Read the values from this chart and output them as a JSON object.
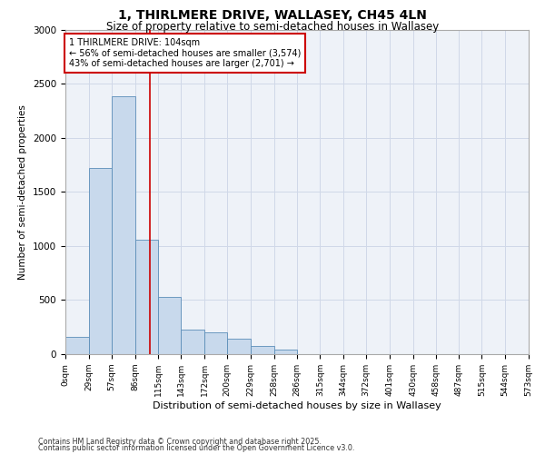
{
  "title_line1": "1, THIRLMERE DRIVE, WALLASEY, CH45 4LN",
  "title_line2": "Size of property relative to semi-detached houses in Wallasey",
  "xlabel": "Distribution of semi-detached houses by size in Wallasey",
  "ylabel": "Number of semi-detached properties",
  "property_size": 104,
  "property_label": "1 THIRLMERE DRIVE: 104sqm",
  "pct_smaller": 56,
  "pct_larger": 43,
  "n_smaller": 3574,
  "n_larger": 2701,
  "bar_edges": [
    0,
    29,
    57,
    86,
    115,
    143,
    172,
    200,
    229,
    258,
    286,
    315,
    344,
    372,
    401,
    430,
    458,
    487,
    515,
    544,
    573
  ],
  "bar_heights": [
    160,
    1720,
    2380,
    1060,
    530,
    230,
    200,
    140,
    75,
    45,
    0,
    0,
    0,
    0,
    0,
    0,
    0,
    0,
    0,
    0
  ],
  "bar_color": "#c8d9ec",
  "bar_edge_color": "#5b8db8",
  "vline_color": "#cc0000",
  "vline_x": 104,
  "annotation_box_color": "#cc0000",
  "grid_color": "#d0d8e8",
  "background_color": "#eef2f8",
  "ylim": [
    0,
    3000
  ],
  "yticks": [
    0,
    500,
    1000,
    1500,
    2000,
    2500,
    3000
  ],
  "tick_labels": [
    "0sqm",
    "29sqm",
    "57sqm",
    "86sqm",
    "115sqm",
    "143sqm",
    "172sqm",
    "200sqm",
    "229sqm",
    "258sqm",
    "286sqm",
    "315sqm",
    "344sqm",
    "372sqm",
    "401sqm",
    "430sqm",
    "458sqm",
    "487sqm",
    "515sqm",
    "544sqm",
    "573sqm"
  ],
  "footnote1": "Contains HM Land Registry data © Crown copyright and database right 2025.",
  "footnote2": "Contains public sector information licensed under the Open Government Licence v3.0."
}
